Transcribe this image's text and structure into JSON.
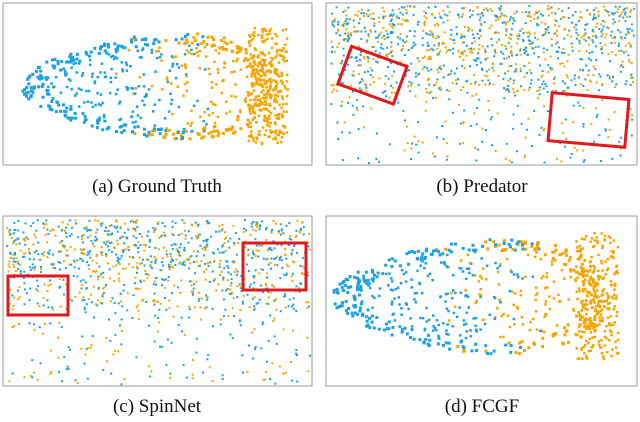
{
  "figure": {
    "panels": [
      {
        "caption": "(a) Ground Truth"
      },
      {
        "caption": "(b) Predator"
      },
      {
        "caption": "(c) SpinNet"
      },
      {
        "caption": "(d) FCGF"
      }
    ]
  }
}
